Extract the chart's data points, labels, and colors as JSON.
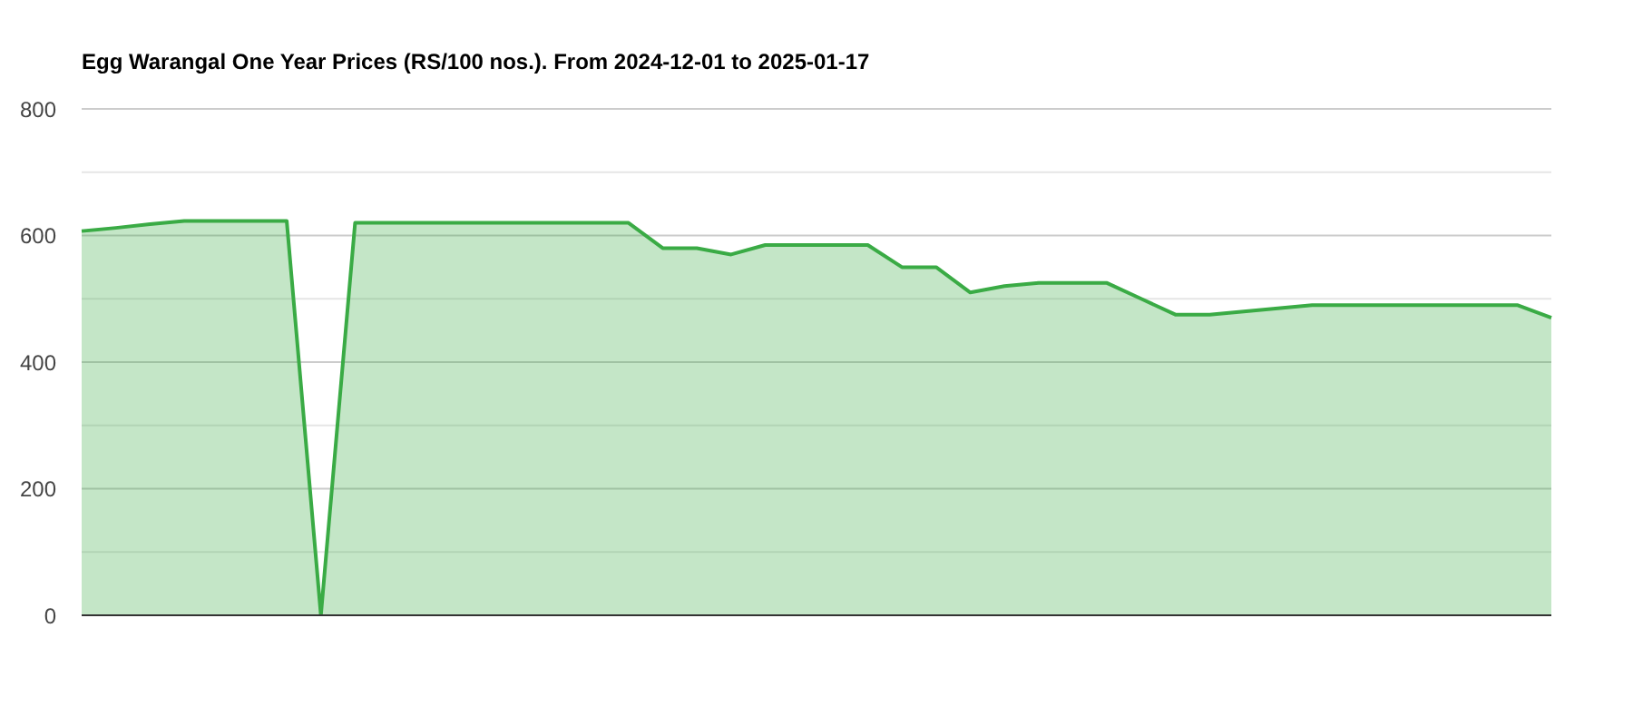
{
  "chart_data": {
    "type": "area",
    "title": "Egg Warangal One Year Prices (RS/100 nos.). From 2024-12-01 to 2025-01-17",
    "categories": [
      null,
      null,
      null,
      null,
      null,
      null,
      null,
      null,
      null,
      null,
      null,
      null,
      null,
      null,
      null,
      null,
      null,
      null,
      null,
      null,
      null,
      null,
      null,
      null,
      null,
      null,
      null,
      null,
      null,
      null,
      null,
      null,
      null,
      null,
      null,
      null,
      null,
      null,
      null,
      null,
      null,
      null,
      null,
      null
    ],
    "values": [
      607,
      612,
      618,
      623,
      623,
      623,
      623,
      0,
      620,
      620,
      620,
      620,
      620,
      620,
      620,
      620,
      620,
      580,
      580,
      570,
      585,
      585,
      585,
      585,
      550,
      550,
      510,
      520,
      525,
      525,
      525,
      500,
      475,
      475,
      480,
      485,
      490,
      490,
      490,
      490,
      490,
      490,
      490,
      470
    ],
    "color": "#3aab45",
    "ylim": [
      0,
      800
    ],
    "yticks": [
      0,
      {
        "value": 100,
        "label": null
      },
      200,
      {
        "value": 300,
        "label": null
      },
      400,
      {
        "value": 500,
        "label": null
      },
      600,
      {
        "value": 700,
        "label": null
      },
      800
    ],
    "grid": "y",
    "tick_labels": "y"
  }
}
